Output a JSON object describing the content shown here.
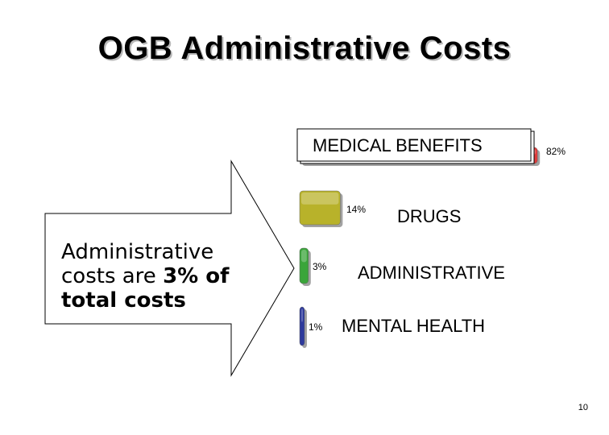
{
  "slide": {
    "title": "OGB Administrative Costs",
    "page_number": "10"
  },
  "callout": {
    "line1": "Administrative",
    "line2_prefix": "costs are ",
    "line2_bold": "3% of",
    "line3_bold": "total costs"
  },
  "chart_data": {
    "type": "bar",
    "orientation": "horizontal",
    "categories": [
      "MEDICAL BENEFITS",
      "DRUGS",
      "ADMINISTRATIVE",
      "MENTAL HEALTH"
    ],
    "values": [
      82,
      14,
      3,
      1
    ],
    "value_labels": [
      "82%",
      "14%",
      "3%",
      "1%"
    ],
    "colors": [
      "#e03c3c",
      "#b8b22a",
      "#3aa53a",
      "#2e3a9c"
    ],
    "xlim": [
      0,
      100
    ]
  }
}
